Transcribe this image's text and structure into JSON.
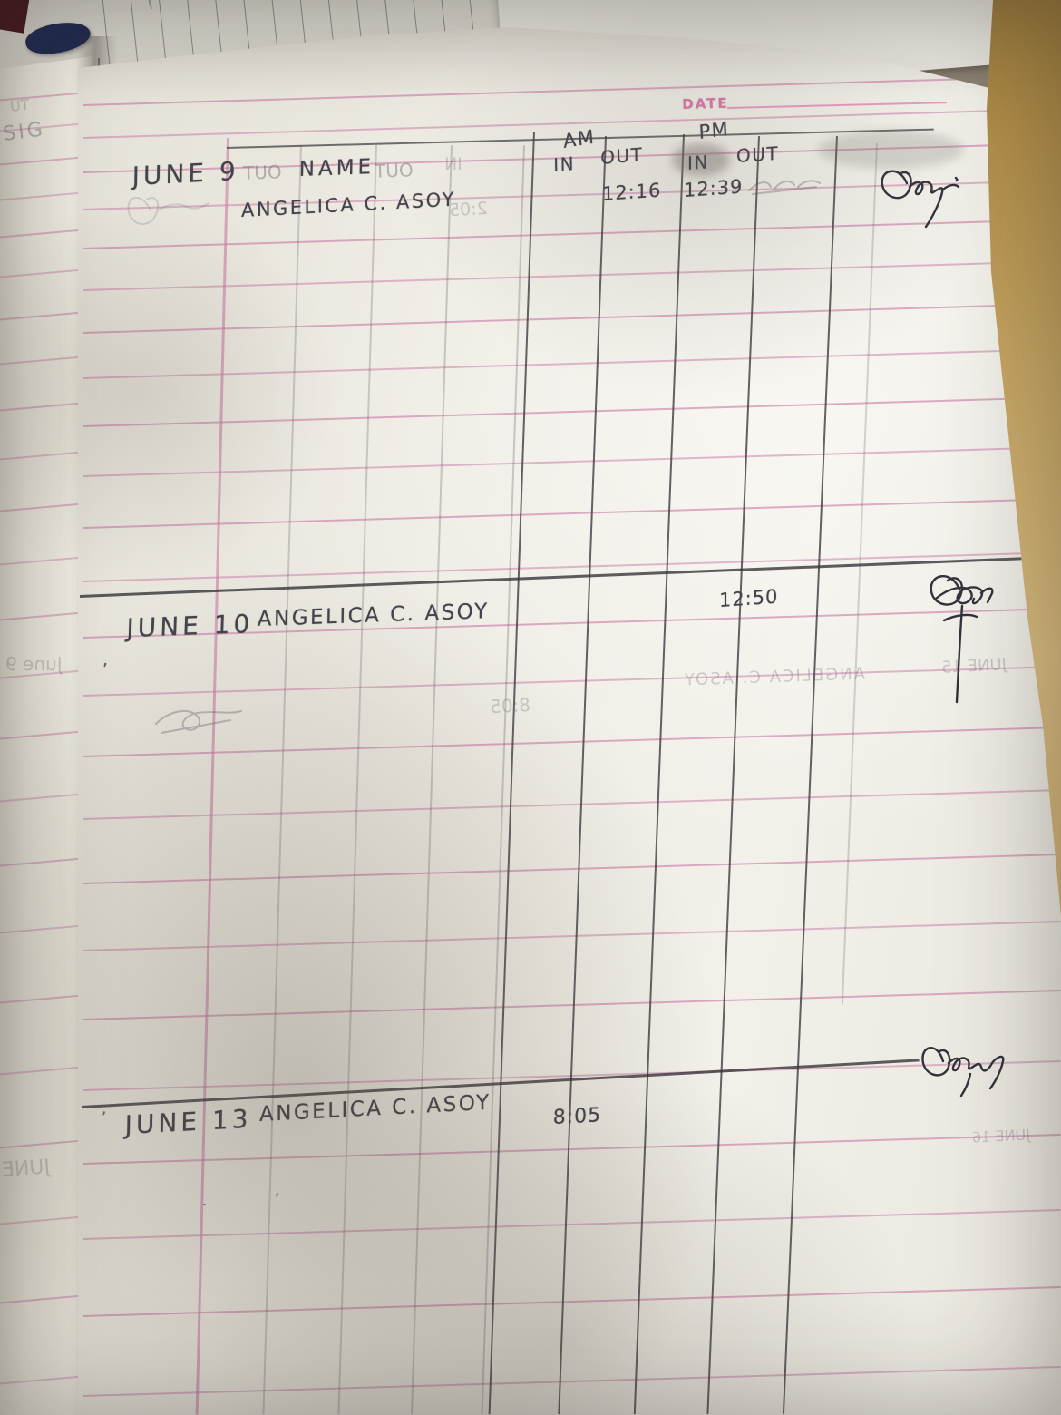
{
  "page_header": {
    "date_label": "DATE"
  },
  "table": {
    "headers": {
      "name": "NAME",
      "am": "AM",
      "pm": "PM",
      "in": "IN",
      "out": "OUT"
    },
    "rows": [
      {
        "date": "JUNE 9",
        "name": "ANGELICA C. ASOY",
        "am_in": "",
        "am_out": "12:16",
        "pm_in": "12:39",
        "pm_out": ""
      },
      {
        "date": "JUNE 10",
        "name": "ANGELICA C. ASOY",
        "am_in": "",
        "am_out": "",
        "pm_in": "12:50",
        "pm_out": ""
      },
      {
        "date": "JUNE 13",
        "name": "ANGELICA C. ASOY",
        "am_in": "8:05",
        "am_out": "",
        "pm_in": "",
        "pm_out": ""
      }
    ]
  },
  "bleedthrough": {
    "left_strip_top": "UT",
    "left_strip_signature_label": "SIG",
    "left_strip_mid_date": "June 9",
    "left_strip_bottom_date": "JUNE",
    "header_mirrored_out_1": "OUT",
    "header_mirrored_out_2": "OUT",
    "header_mirrored_in": "IN",
    "row1_faint_time": "2:05",
    "row2_mirrored_time": "8:05",
    "row2_mirrored_name": "ANGELICA C. ASOY",
    "row2_mirrored_date": "JUNE 15",
    "row3_mirrored_fragment": "JUNE 16"
  },
  "colors": {
    "ruled_pink": "#c76ea0",
    "pencil": "#44424a",
    "date_pink": "#de5a9e",
    "paper": "#efece4",
    "desk_tan": "#ccab67"
  }
}
